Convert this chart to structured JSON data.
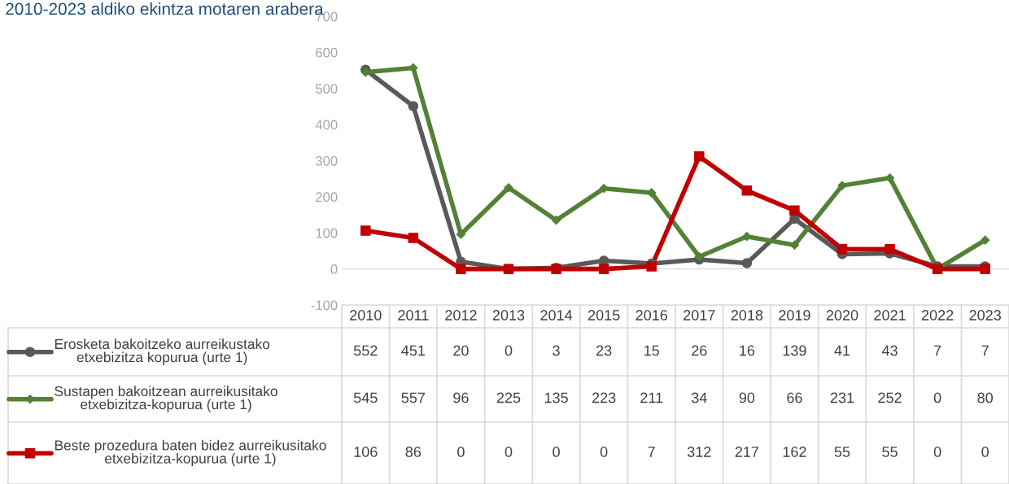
{
  "chart_data": {
    "type": "line",
    "title": "2010-2023 aldiko ekintza motaren arabera",
    "categories": [
      "2010",
      "2011",
      "2012",
      "2013",
      "2014",
      "2015",
      "2016",
      "2017",
      "2018",
      "2019",
      "2020",
      "2021",
      "2022",
      "2023"
    ],
    "series": [
      {
        "name": "Erosketa bakoitzeko aurreikustako etxebizitza kopurua (urte 1)",
        "color": "#595959",
        "marker": "circle",
        "values": [
          552,
          451,
          20,
          0,
          3,
          23,
          15,
          26,
          16,
          139,
          41,
          43,
          7,
          7
        ]
      },
      {
        "name": "Sustapen bakoitzean aurreikusitako etxebizitza-kopurua (urte 1)",
        "color": "#538135",
        "marker": "diamond",
        "values": [
          545,
          557,
          96,
          225,
          135,
          223,
          211,
          34,
          90,
          66,
          231,
          252,
          0,
          80
        ]
      },
      {
        "name": "Beste prozedura baten bidez aurreikusitako etxebizitza-kopurua (urte 1)",
        "color": "#c00000",
        "marker": "square",
        "values": [
          106,
          86,
          0,
          0,
          0,
          0,
          7,
          312,
          217,
          162,
          55,
          55,
          0,
          0
        ]
      }
    ],
    "ylim": [
      -100,
      700
    ],
    "yticks": [
      -100,
      0,
      100,
      200,
      300,
      400,
      500,
      600,
      700
    ],
    "data_labels": true,
    "legend": "bottom",
    "line_style": "solid"
  }
}
